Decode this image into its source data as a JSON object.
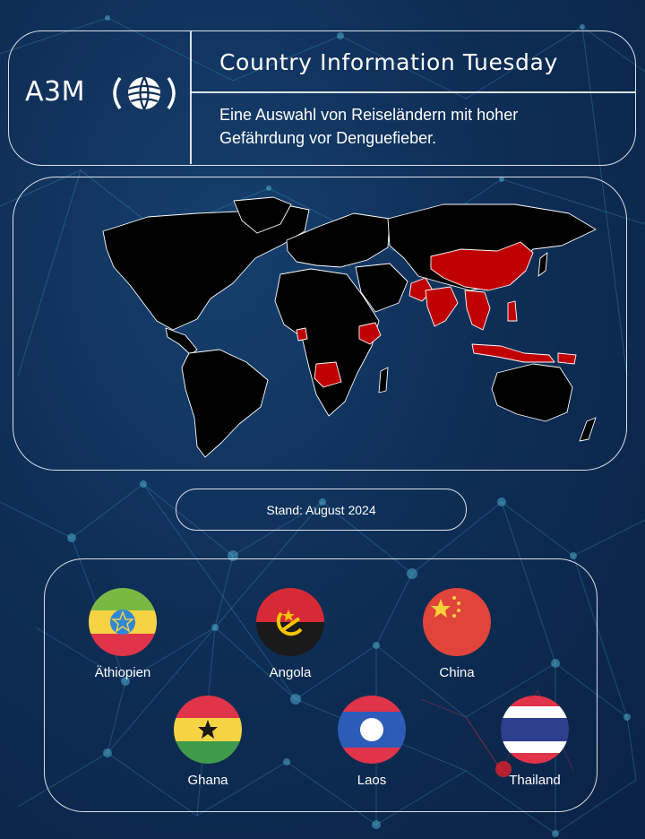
{
  "brand": {
    "logo_text": "A3M"
  },
  "header": {
    "title": "Country Information Tuesday",
    "subtitle": "Eine Auswahl von Reiseländern mit hoher Gefährdung vor Denguefieber."
  },
  "map": {
    "land_color": "#000000",
    "highlight_color": "#c00000",
    "highlighted_regions": [
      "Angola",
      "Äthiopien",
      "China",
      "Pakistan",
      "India",
      "Laos",
      "Thailand",
      "Vietnam",
      "Philippines",
      "Indonesia",
      "Papua New Guinea"
    ]
  },
  "status": {
    "date_label": "Stand: August 2024"
  },
  "flags": [
    {
      "name": "Äthiopien",
      "icon": "ethiopia-flag-icon"
    },
    {
      "name": "Angola",
      "icon": "angola-flag-icon"
    },
    {
      "name": "China",
      "icon": "china-flag-icon"
    },
    {
      "name": "Ghana",
      "icon": "ghana-flag-icon"
    },
    {
      "name": "Laos",
      "icon": "laos-flag-icon"
    },
    {
      "name": "Thailand",
      "icon": "thailand-flag-icon"
    }
  ]
}
